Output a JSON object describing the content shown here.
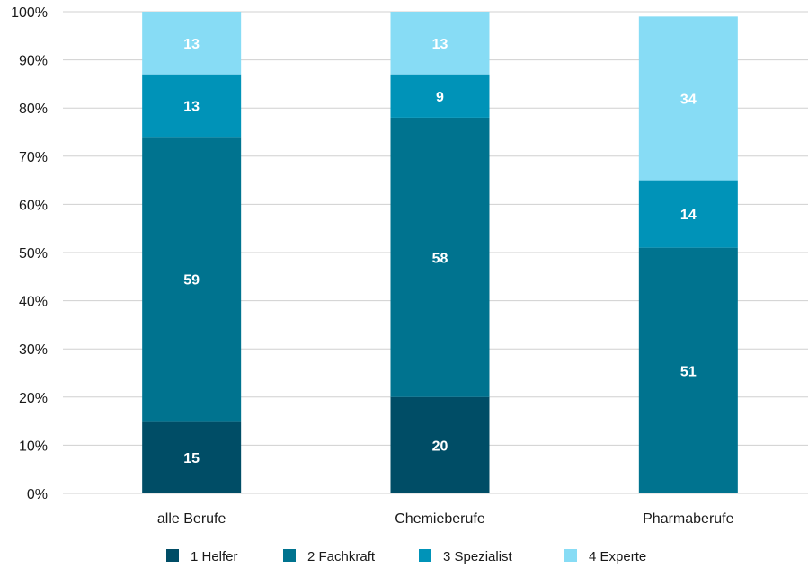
{
  "chart_data": {
    "type": "bar",
    "stacked": true,
    "categories": [
      "alle Berufe",
      "Chemieberufe",
      "Pharmaberufe"
    ],
    "series": [
      {
        "name": "1 Helfer",
        "color": "#004d66",
        "values": [
          15,
          20,
          0
        ]
      },
      {
        "name": "2 Fachkraft",
        "color": "#00738f",
        "values": [
          59,
          58,
          51
        ]
      },
      {
        "name": "3 Spezialist",
        "color": "#0093b8",
        "values": [
          13,
          9,
          14
        ]
      },
      {
        "name": "4 Experte",
        "color": "#87dcf5",
        "values": [
          13,
          13,
          34
        ]
      }
    ],
    "ylim": [
      0,
      100
    ],
    "yticks": [
      0,
      10,
      20,
      30,
      40,
      50,
      60,
      70,
      80,
      90,
      100
    ],
    "ytick_format": "%",
    "grid": true,
    "legend": "bottom"
  }
}
